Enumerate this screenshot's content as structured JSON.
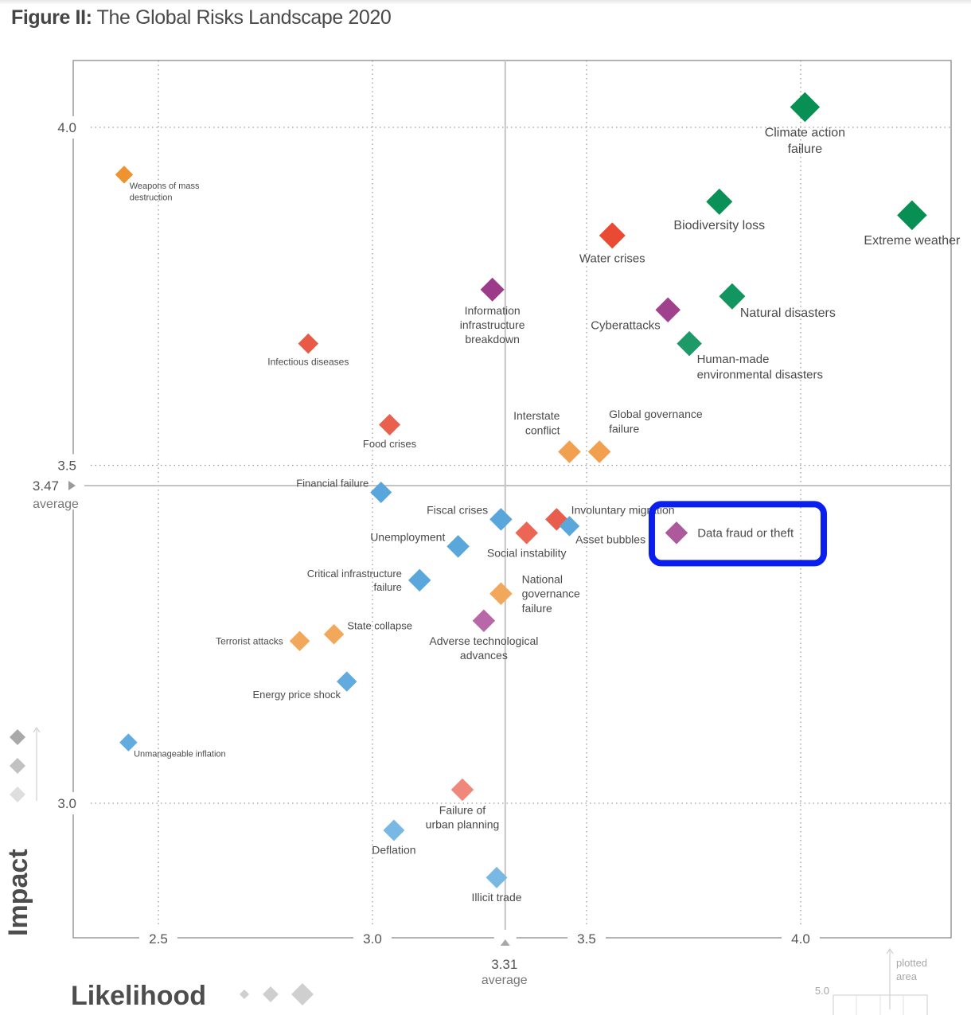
{
  "figure": {
    "title_prefix": "Figure II:",
    "title_text": " The Global Risks Landscape 2020"
  },
  "chart_data": {
    "type": "scatter",
    "title": "Figure II: The Global Risks Landscape 2020",
    "xlabel": "Likelihood",
    "ylabel": "Impact",
    "xlim": [
      2.3,
      4.35
    ],
    "ylim": [
      2.8,
      4.1
    ],
    "x_ticks": [
      "2.5",
      "3.0",
      "3.5",
      "4.0"
    ],
    "x_tick_values": [
      2.5,
      3.0,
      3.5,
      4.0
    ],
    "y_ticks": [
      "3.0",
      "3.5",
      "4.0"
    ],
    "y_tick_values": [
      3.0,
      3.5,
      4.0
    ],
    "grid": "dotted",
    "x_average": {
      "value": 3.31,
      "label": "3.31",
      "word": "average"
    },
    "y_average": {
      "value": 3.47,
      "label": "3.47",
      "word": "average"
    },
    "inset": {
      "tick_label": "5.0",
      "caption_line1": "plotted",
      "caption_line2": "area"
    },
    "categories": {
      "economic": "#5aa6dc",
      "environmental": "#0b8f57",
      "geopolitical": "#f0a050",
      "societal": "#e85c4a",
      "technological": "#a0418e"
    },
    "highlight": "Data fraud or theft",
    "highlight_color": "#0a1ef0",
    "points": [
      {
        "label": [
          "Climate action",
          "failure"
        ],
        "x": 4.01,
        "y": 4.03,
        "category": "environmental",
        "color": "#078f54",
        "size": 1.25,
        "pos": "below",
        "fs": 16
      },
      {
        "label": [
          "Biodiversity loss"
        ],
        "x": 3.81,
        "y": 3.89,
        "category": "environmental",
        "color": "#0a9158",
        "size": 1.1,
        "pos": "below",
        "fs": 16
      },
      {
        "label": [
          "Extreme weather"
        ],
        "x": 4.26,
        "y": 3.87,
        "category": "environmental",
        "color": "#078f54",
        "size": 1.25,
        "pos": "below",
        "fs": 16
      },
      {
        "label": [
          "Water crises"
        ],
        "x": 3.56,
        "y": 3.84,
        "category": "societal",
        "color": "#e84a33",
        "size": 1.1,
        "pos": "below",
        "fs": 15
      },
      {
        "label": [
          "Information",
          "infrastructure",
          "breakdown"
        ],
        "x": 3.28,
        "y": 3.76,
        "category": "technological",
        "color": "#9c3b8a",
        "size": 1.0,
        "pos": "below",
        "fs": 14
      },
      {
        "label": [
          "Natural disasters"
        ],
        "x": 3.84,
        "y": 3.75,
        "category": "environmental",
        "color": "#139560",
        "size": 1.1,
        "pos": "below-right",
        "fs": 16
      },
      {
        "label": [
          "Cyberattacks"
        ],
        "x": 3.69,
        "y": 3.73,
        "category": "technological",
        "color": "#a0418e",
        "size": 1.05,
        "pos": "below-left",
        "fs": 15
      },
      {
        "label": [
          "Human-made",
          "environmental disasters"
        ],
        "x": 3.74,
        "y": 3.68,
        "category": "environmental",
        "color": "#1e9a68",
        "size": 1.05,
        "pos": "below-right",
        "fs": 15
      },
      {
        "label": [
          "Weapons of mass",
          "destruction"
        ],
        "x": 2.42,
        "y": 3.93,
        "category": "geopolitical",
        "color": "#ef9330",
        "size": 0.75,
        "pos": "below-right",
        "fs": 11
      },
      {
        "label": [
          "Infectious diseases"
        ],
        "x": 2.85,
        "y": 3.68,
        "category": "societal",
        "color": "#e85a45",
        "size": 0.85,
        "pos": "below",
        "fs": 12
      },
      {
        "label": [
          "Food crises"
        ],
        "x": 3.04,
        "y": 3.56,
        "category": "societal",
        "color": "#e9604d",
        "size": 0.9,
        "pos": "below",
        "fs": 13
      },
      {
        "label": [
          "Interstate",
          "conflict"
        ],
        "x": 3.46,
        "y": 3.52,
        "category": "geopolitical",
        "color": "#f0a04e",
        "size": 0.95,
        "pos": "above-left",
        "fs": 14
      },
      {
        "label": [
          "Global governance",
          "failure"
        ],
        "x": 3.53,
        "y": 3.52,
        "category": "geopolitical",
        "color": "#f0a04e",
        "size": 0.95,
        "pos": "above-right",
        "fs": 14
      },
      {
        "label": [
          "Financial failure"
        ],
        "x": 3.02,
        "y": 3.46,
        "category": "economic",
        "color": "#58a6dc",
        "size": 0.9,
        "pos": "left-up",
        "fs": 13
      },
      {
        "label": [
          "Fiscal crises"
        ],
        "x": 3.3,
        "y": 3.42,
        "category": "economic",
        "color": "#58a6dc",
        "size": 0.95,
        "pos": "left-up",
        "fs": 14
      },
      {
        "label": [
          "Involuntary migration"
        ],
        "x": 3.43,
        "y": 3.42,
        "category": "societal",
        "color": "#e95d4d",
        "size": 0.95,
        "pos": "right-up",
        "fs": 14
      },
      {
        "label": [
          "Social instability"
        ],
        "x": 3.36,
        "y": 3.4,
        "category": "societal",
        "color": "#ec6656",
        "size": 0.95,
        "pos": "below",
        "fs": 14
      },
      {
        "label": [
          "Asset bubbles"
        ],
        "x": 3.46,
        "y": 3.41,
        "category": "economic",
        "color": "#5aa7dc",
        "size": 0.85,
        "pos": "below-right",
        "fs": 14
      },
      {
        "label": [
          "Data fraud or theft"
        ],
        "x": 3.71,
        "y": 3.4,
        "category": "technological",
        "color": "#ad5a9c",
        "size": 0.95,
        "pos": "right",
        "fs": 15
      },
      {
        "label": [
          "Unemployment"
        ],
        "x": 3.2,
        "y": 3.38,
        "category": "economic",
        "color": "#5aa7dc",
        "size": 0.95,
        "pos": "left-up",
        "fs": 14
      },
      {
        "label": [
          "Critical infrastructure",
          "failure"
        ],
        "x": 3.11,
        "y": 3.33,
        "category": "economic",
        "color": "#5aa7dc",
        "size": 0.95,
        "pos": "left",
        "fs": 13
      },
      {
        "label": [
          "National",
          "governance",
          "failure"
        ],
        "x": 3.3,
        "y": 3.31,
        "category": "geopolitical",
        "color": "#f2a85a",
        "size": 0.95,
        "pos": "right",
        "fs": 14
      },
      {
        "label": [
          "Adverse technological",
          "advances"
        ],
        "x": 3.26,
        "y": 3.27,
        "category": "technological",
        "color": "#b868a8",
        "size": 0.95,
        "pos": "below",
        "fs": 14
      },
      {
        "label": [
          "State collapse"
        ],
        "x": 2.91,
        "y": 3.25,
        "category": "geopolitical",
        "color": "#f2a85a",
        "size": 0.85,
        "pos": "right-up",
        "fs": 13
      },
      {
        "label": [
          "Terrorist attacks"
        ],
        "x": 2.83,
        "y": 3.24,
        "category": "geopolitical",
        "color": "#f2a85a",
        "size": 0.85,
        "pos": "left",
        "fs": 12
      },
      {
        "label": [
          "Energy price shock"
        ],
        "x": 2.94,
        "y": 3.18,
        "category": "economic",
        "color": "#62abdf",
        "size": 0.85,
        "pos": "below-left",
        "fs": 13
      },
      {
        "label": [
          "Unmanageable inflation"
        ],
        "x": 2.43,
        "y": 3.09,
        "category": "economic",
        "color": "#62abdf",
        "size": 0.75,
        "pos": "below-right",
        "fs": 11
      },
      {
        "label": [
          "Failure of",
          "urban planning"
        ],
        "x": 3.21,
        "y": 3.02,
        "category": "societal",
        "color": "#ef887a",
        "size": 0.95,
        "pos": "below",
        "fs": 14
      },
      {
        "label": [
          "Deflation"
        ],
        "x": 3.05,
        "y": 2.96,
        "category": "economic",
        "color": "#78b8e4",
        "size": 0.9,
        "pos": "below",
        "fs": 14
      },
      {
        "label": [
          "Illicit trade"
        ],
        "x": 3.29,
        "y": 2.89,
        "category": "economic",
        "color": "#7ab8e4",
        "size": 0.9,
        "pos": "below",
        "fs": 14
      }
    ]
  }
}
